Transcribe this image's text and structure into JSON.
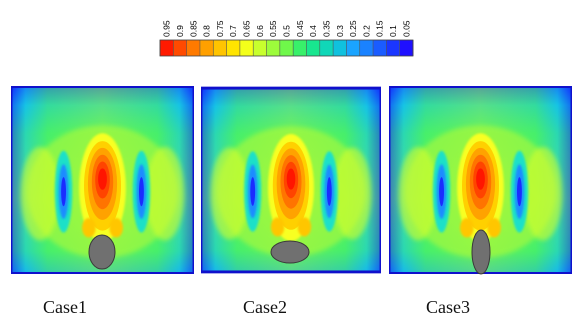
{
  "colorbar": {
    "ticks": [
      "0.95",
      "0.9",
      "0.85",
      "0.8",
      "0.75",
      "0.7",
      "0.65",
      "0.6",
      "0.55",
      "0.5",
      "0.45",
      "0.4",
      "0.35",
      "0.3",
      "0.25",
      "0.2",
      "0.15",
      "0.1",
      "0.05"
    ],
    "colors": [
      "#ff1a00",
      "#ff4a00",
      "#ff7a00",
      "#ffa000",
      "#ffc400",
      "#ffe400",
      "#f3ff1a",
      "#c8ff2d",
      "#9dfc3b",
      "#6ff84a",
      "#38f06a",
      "#18e68f",
      "#10d7b8",
      "#10c1de",
      "#1aa4ff",
      "#1a82ff",
      "#1a5cff",
      "#1a36ff",
      "#1f10ff"
    ]
  },
  "panels": [
    {
      "label": "Case1",
      "blob": "small oval blob"
    },
    {
      "label": "Case2",
      "blob": "wide flat blob"
    },
    {
      "label": "Case3",
      "blob": "tall oval blob"
    }
  ]
}
